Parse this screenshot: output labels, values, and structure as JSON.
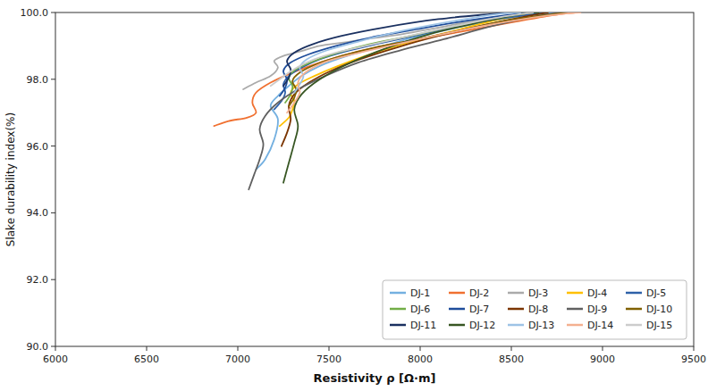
{
  "chart_data": {
    "type": "line",
    "xlabel": "Resistivity ρ [Ω·m]",
    "ylabel": "Slake durability index(%)",
    "xlim": [
      6000,
      9500
    ],
    "ylim": [
      90.0,
      100.0
    ],
    "xticks": [
      6000,
      6500,
      7000,
      7500,
      8000,
      8500,
      9000,
      9500
    ],
    "yticks": [
      {
        "value": 90.0,
        "label": "90.0"
      },
      {
        "value": 92.0,
        "label": "92.0"
      },
      {
        "value": 94.0,
        "label": "94.0"
      },
      {
        "value": 96.0,
        "label": "96.0"
      },
      {
        "value": 98.0,
        "label": "98.0"
      },
      {
        "value": 100.0,
        "label": "100.0"
      }
    ],
    "grid": false,
    "legend": "lower right",
    "series": [
      {
        "name": "DJ-1",
        "color": "#74b0e0",
        "x": [
          7100,
          7150,
          7200,
          7220,
          7180,
          7220,
          7280,
          7350,
          7450,
          7600,
          7800,
          8000,
          8250,
          8500,
          8750
        ],
        "values": [
          95.3,
          95.6,
          96.2,
          96.8,
          97.2,
          97.5,
          97.8,
          98.1,
          98.4,
          98.7,
          99.0,
          99.3,
          99.6,
          99.85,
          100.0
        ]
      },
      {
        "name": "DJ-2",
        "color": "#f07030",
        "x": [
          6870,
          6950,
          7050,
          7100,
          7080,
          7100,
          7180,
          7300,
          7450,
          7600,
          7800,
          8100,
          8500,
          8700,
          8850
        ],
        "values": [
          96.6,
          96.75,
          96.85,
          97.0,
          97.3,
          97.6,
          97.9,
          98.2,
          98.5,
          98.75,
          99.0,
          99.3,
          99.7,
          99.9,
          100.0
        ]
      },
      {
        "name": "DJ-3",
        "color": "#aaaaaa",
        "x": [
          7030,
          7100,
          7180,
          7220,
          7200,
          7250,
          7350,
          7450,
          7580,
          7700,
          7900,
          8100,
          8300,
          8500,
          8650
        ],
        "values": [
          97.7,
          97.9,
          98.1,
          98.35,
          98.55,
          98.7,
          98.85,
          99.0,
          99.1,
          99.2,
          99.35,
          99.55,
          99.75,
          99.9,
          100.0
        ]
      },
      {
        "name": "DJ-4",
        "color": "#ffc000",
        "x": [
          7230,
          7280,
          7300,
          7310,
          7290,
          7330,
          7420,
          7550,
          7700,
          7900,
          8150,
          8400,
          8600,
          8700
        ],
        "values": [
          96.6,
          96.85,
          97.1,
          97.35,
          97.6,
          97.85,
          98.1,
          98.4,
          98.7,
          99.05,
          99.4,
          99.75,
          99.95,
          100.0
        ]
      },
      {
        "name": "DJ-5",
        "color": "#2e60a8",
        "x": [
          7200,
          7240,
          7260,
          7250,
          7280,
          7350,
          7450,
          7600,
          7800,
          8050,
          8300,
          8550,
          8700
        ],
        "values": [
          97.1,
          97.35,
          97.6,
          97.85,
          98.1,
          98.35,
          98.6,
          98.85,
          99.1,
          99.4,
          99.7,
          99.9,
          100.0
        ]
      },
      {
        "name": "DJ-6",
        "color": "#72ad47",
        "x": [
          7260,
          7290,
          7300,
          7280,
          7320,
          7420,
          7550,
          7720,
          7950,
          8200,
          8450,
          8600
        ],
        "values": [
          97.3,
          97.55,
          97.8,
          98.05,
          98.3,
          98.55,
          98.8,
          99.05,
          99.3,
          99.6,
          99.85,
          100.0
        ]
      },
      {
        "name": "DJ-7",
        "color": "#1e4d9b",
        "x": [
          7230,
          7260,
          7270,
          7250,
          7290,
          7390,
          7540,
          7730,
          7980,
          8250,
          8520,
          8650
        ],
        "values": [
          97.5,
          97.75,
          98.0,
          98.25,
          98.5,
          98.75,
          99.0,
          99.25,
          99.5,
          99.75,
          99.95,
          100.0
        ]
      },
      {
        "name": "DJ-8",
        "color": "#7b3500",
        "x": [
          7240,
          7270,
          7290,
          7280,
          7310,
          7390,
          7510,
          7670,
          7870,
          8100,
          8370,
          8600,
          8700
        ],
        "values": [
          96.0,
          96.4,
          96.8,
          97.2,
          97.55,
          97.9,
          98.25,
          98.6,
          98.95,
          99.3,
          99.65,
          99.9,
          100.0
        ]
      },
      {
        "name": "DJ-9",
        "color": "#606060",
        "x": [
          7060,
          7090,
          7120,
          7140,
          7120,
          7150,
          7220,
          7330,
          7480,
          7660,
          7880,
          8130,
          8400,
          8650,
          8780
        ],
        "values": [
          94.7,
          95.15,
          95.6,
          96.05,
          96.5,
          96.9,
          97.3,
          97.7,
          98.1,
          98.5,
          98.85,
          99.2,
          99.6,
          99.9,
          100.0
        ]
      },
      {
        "name": "DJ-10",
        "color": "#806000",
        "x": [
          7280,
          7310,
          7320,
          7300,
          7340,
          7430,
          7570,
          7750,
          7990,
          8250,
          8520,
          8730,
          8820
        ],
        "values": [
          97.2,
          97.45,
          97.7,
          97.95,
          98.2,
          98.45,
          98.7,
          98.95,
          99.2,
          99.5,
          99.8,
          99.95,
          100.0
        ]
      },
      {
        "name": "DJ-11",
        "color": "#1a3060",
        "x": [
          7250,
          7280,
          7290,
          7270,
          7310,
          7410,
          7570,
          7800,
          8100,
          8380,
          8500
        ],
        "values": [
          97.8,
          98.05,
          98.3,
          98.55,
          98.8,
          99.05,
          99.3,
          99.55,
          99.8,
          99.95,
          100.0
        ]
      },
      {
        "name": "DJ-12",
        "color": "#375623",
        "x": [
          7250,
          7280,
          7310,
          7330,
          7310,
          7350,
          7450,
          7600,
          7800,
          8050,
          8320,
          8550,
          8650
        ],
        "values": [
          94.9,
          95.5,
          96.1,
          96.6,
          97.1,
          97.55,
          98.0,
          98.45,
          98.9,
          99.35,
          99.7,
          99.95,
          100.0
        ]
      },
      {
        "name": "DJ-13",
        "color": "#9dc3e6",
        "x": [
          7310,
          7340,
          7360,
          7340,
          7380,
          7480,
          7640,
          7860,
          8140,
          8420,
          8550
        ],
        "values": [
          97.6,
          97.85,
          98.1,
          98.35,
          98.6,
          98.85,
          99.1,
          99.4,
          99.7,
          99.95,
          100.0
        ]
      },
      {
        "name": "DJ-14",
        "color": "#f4b090",
        "x": [
          7270,
          7310,
          7340,
          7330,
          7370,
          7470,
          7630,
          7830,
          8080,
          8350,
          8620,
          8820,
          8880
        ],
        "values": [
          97.0,
          97.3,
          97.6,
          97.9,
          98.2,
          98.5,
          98.75,
          99.0,
          99.3,
          99.6,
          99.85,
          99.98,
          100.0
        ]
      },
      {
        "name": "DJ-15",
        "color": "#cccccc",
        "x": [
          7180,
          7230,
          7280,
          7340,
          7420,
          7540,
          7700,
          7900,
          8150,
          8430,
          8620
        ],
        "values": [
          97.8,
          98.0,
          98.2,
          98.4,
          98.6,
          98.8,
          99.0,
          99.25,
          99.55,
          99.85,
          100.0
        ]
      }
    ]
  }
}
